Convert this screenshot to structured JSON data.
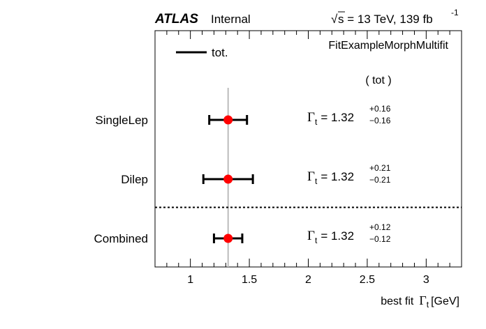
{
  "header": {
    "atlas": "ATLAS",
    "status": "Internal",
    "sqrt_symbol": "√",
    "energy_lumi": "s = 13 TeV, 139 fb",
    "lumi_exponent": "-1"
  },
  "chart_data": {
    "type": "scatter",
    "title": "FitExampleMorphMultifit",
    "xlabel_prefix": "best fit",
    "xlabel_symbol": "Γ",
    "xlabel_sub": "t",
    "xlabel_unit": "[GeV]",
    "xlim": [
      0.7,
      3.3
    ],
    "xticks": [
      1,
      1.5,
      2,
      2.5,
      3
    ],
    "xtick_labels": [
      "1",
      "1.5",
      "2",
      "2.5",
      "3"
    ],
    "reference_line_x": 1.32,
    "legend": {
      "label": "tot.",
      "placement": "top-left"
    },
    "uncertainty_header": "( tot )",
    "result_symbol": "Γ",
    "result_sub": "t",
    "categories": [
      {
        "name": "SingleLep",
        "value": 1.32,
        "value_label": "1.32",
        "err_up": 0.16,
        "err_down": 0.16,
        "err_up_label": "+0.16",
        "err_down_label": "−0.16"
      },
      {
        "name": "Dilep",
        "value": 1.32,
        "value_label": "1.32",
        "err_up": 0.21,
        "err_down": 0.21,
        "err_up_label": "+0.21",
        "err_down_label": "−0.21"
      },
      {
        "name": "Combined",
        "value": 1.32,
        "value_label": "1.32",
        "err_up": 0.12,
        "err_down": 0.12,
        "err_up_label": "+0.12",
        "err_down_label": "−0.12"
      }
    ],
    "separator_after": "Dilep",
    "colors": {
      "marker": "#ff0000",
      "reference_line": "#bbbbbb",
      "error_bar": "#000000"
    }
  }
}
